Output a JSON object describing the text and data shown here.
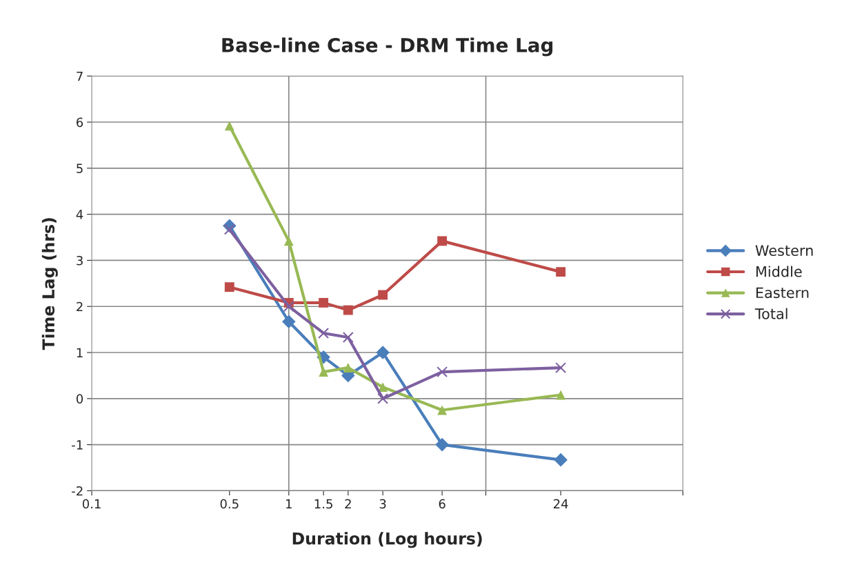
{
  "chart_data": {
    "type": "line",
    "title": "Base-line Case - DRM Time Lag",
    "xlabel": "Duration (Log hours)",
    "ylabel": "Time Lag (hrs)",
    "x": [
      0.5,
      1,
      1.5,
      2,
      3,
      6,
      24
    ],
    "series": [
      {
        "name": "Western",
        "color": "#4a7ebb",
        "marker": "diamond",
        "values": [
          3.75,
          1.67,
          0.9,
          0.5,
          1.0,
          -1.0,
          -1.33
        ]
      },
      {
        "name": "Middle",
        "color": "#be4b48",
        "marker": "square",
        "values": [
          2.42,
          2.08,
          2.08,
          1.92,
          2.25,
          3.42,
          2.75
        ]
      },
      {
        "name": "Eastern",
        "color": "#98b954",
        "marker": "triangle",
        "values": [
          5.92,
          3.42,
          0.58,
          0.67,
          0.25,
          -0.25,
          0.08
        ]
      },
      {
        "name": "Total",
        "color": "#7d60a0",
        "marker": "cross",
        "values": [
          3.67,
          2.0,
          1.42,
          1.33,
          0.0,
          0.58,
          0.67
        ]
      }
    ],
    "log": "x",
    "xlim": [
      0.1,
      100
    ],
    "xticks": [
      0.1,
      0.5,
      1,
      1.5,
      2,
      3,
      6,
      {
        "value": 10,
        "label": null
      },
      24,
      {
        "value": 100,
        "label": null
      }
    ],
    "ylim": [
      -2,
      7
    ],
    "yticks": [
      -2,
      -1,
      0,
      1,
      2,
      3,
      4,
      5,
      6,
      7
    ],
    "grid": "y",
    "ref_lines": [
      {
        "axis": "x",
        "value": 1,
        "color": "#878787"
      },
      {
        "axis": "x",
        "value": 10,
        "color": "#878787"
      }
    ],
    "legend": "right",
    "line_style": "solid"
  }
}
